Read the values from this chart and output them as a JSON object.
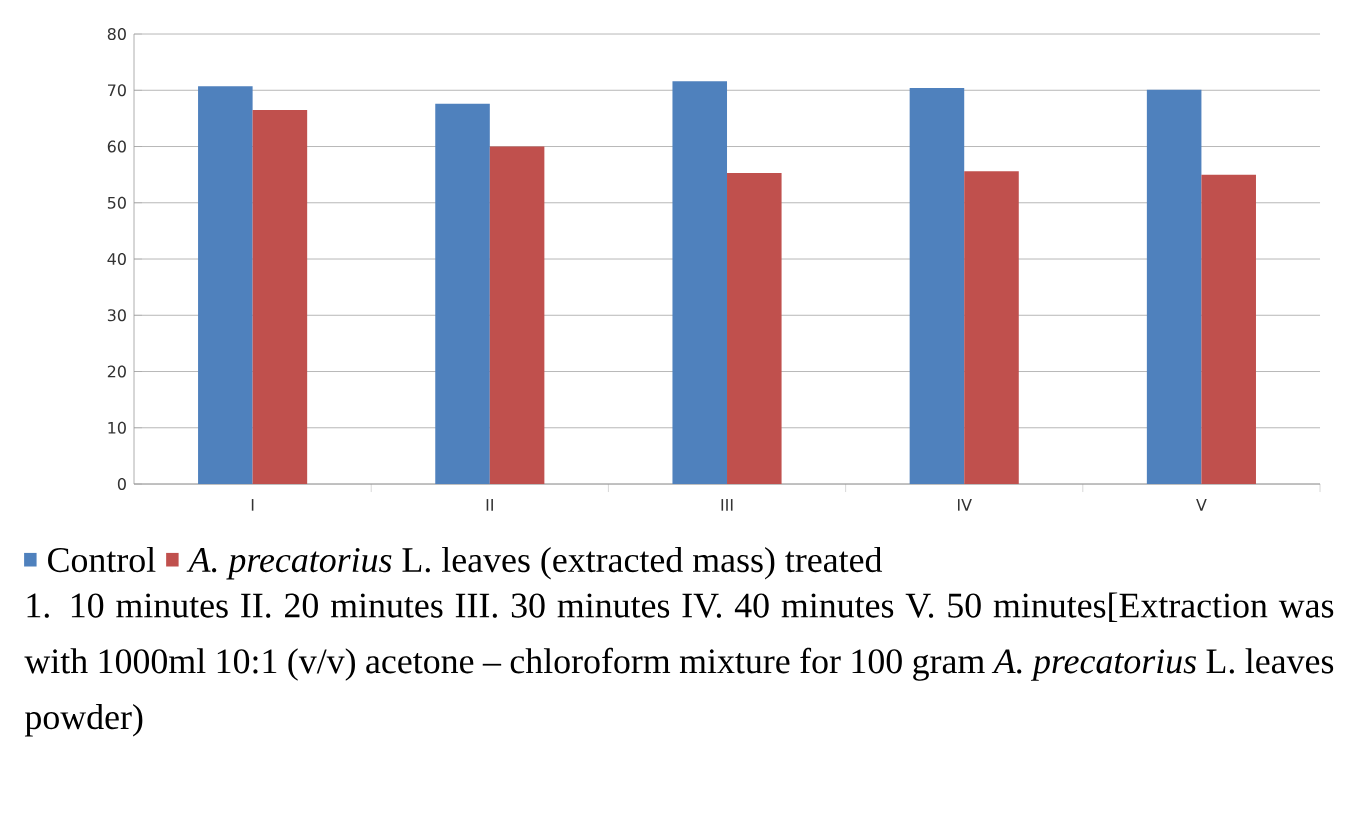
{
  "chart_data": {
    "type": "bar",
    "categories": [
      "I",
      "II",
      "III",
      "IV",
      "V"
    ],
    "series": [
      {
        "name": "Control",
        "color": "#4f81bd",
        "values": [
          70.7,
          67.6,
          71.6,
          70.4,
          70.1
        ]
      },
      {
        "name": "*A. precatorius* L. leaves (extracted mass) treated",
        "color": "#c0504d",
        "values": [
          66.5,
          60,
          55.3,
          55.6,
          55.0
        ]
      }
    ],
    "ylim": [
      0,
      80
    ],
    "yticks": [
      0,
      10,
      20,
      30,
      40,
      50,
      60,
      70,
      80
    ],
    "grid": "y",
    "legend": "bottom",
    "annotations": [
      "1. 10 minutes II. 20 minutes III. 30 minutes IV. 40 minutes V. 50 minutes[Extraction was with 1000ml 10:1 (v/v) acetone – chloroform mixture for 100 gram *A. precatorius* L. leaves powder)"
    ]
  }
}
